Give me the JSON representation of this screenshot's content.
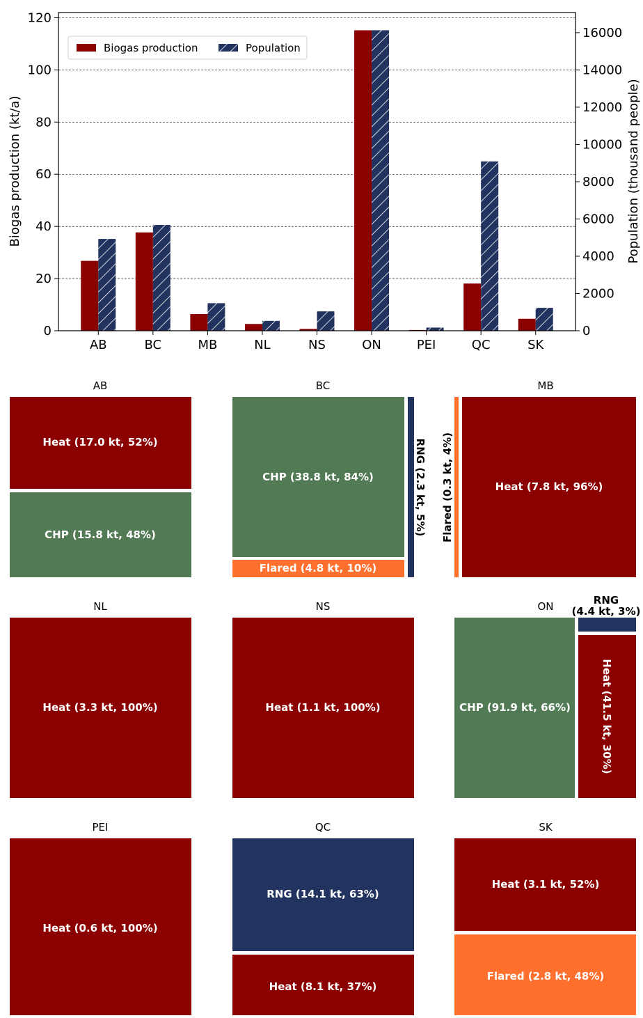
{
  "chart_data": [
    {
      "type": "bar",
      "categories": [
        "AB",
        "BC",
        "MB",
        "NL",
        "NS",
        "ON",
        "PEI",
        "QC",
        "SK"
      ],
      "ylabel": "Biogas production (kt/a)",
      "y2label": "Population (thousand people)",
      "ylim": [
        0,
        122
      ],
      "y2lim": [
        0,
        17080
      ],
      "yticks": [
        0,
        20,
        40,
        60,
        80,
        100,
        120
      ],
      "y2ticks": [
        0,
        2000,
        4000,
        6000,
        8000,
        10000,
        12000,
        14000,
        16000
      ],
      "grid": "horizontal dashed",
      "legend_position": "top-left",
      "series": [
        {
          "name": "Biogas production",
          "axis": "left",
          "color": "#8b0000",
          "hatch": false,
          "values": [
            26.8,
            37.7,
            6.4,
            2.6,
            0.7,
            115.2,
            0.3,
            18.1,
            4.6
          ]
        },
        {
          "name": "Population",
          "axis": "right",
          "color": "#22335f",
          "hatch": true,
          "values": [
            4930,
            5680,
            1480,
            530,
            1040,
            16130,
            170,
            9090,
            1230
          ]
        }
      ]
    },
    {
      "type": "treemap",
      "colors": {
        "Heat": "#8b0000",
        "CHP": "#527a54",
        "RNG": "#22335f",
        "Flared": "#ff6f2e"
      },
      "panels": [
        {
          "title": "AB",
          "tiles": [
            {
              "label": "Heat (17.0 kt, 52%)",
              "use": "Heat",
              "kt": 17.0,
              "pct": 52
            },
            {
              "label": "CHP (15.8 kt, 48%)",
              "use": "CHP",
              "kt": 15.8,
              "pct": 48
            }
          ]
        },
        {
          "title": "BC",
          "tiles": [
            {
              "label": "CHP (38.8 kt, 84%)",
              "use": "CHP",
              "kt": 38.8,
              "pct": 84
            },
            {
              "label": "Flared (4.8 kt, 10%)",
              "use": "Flared",
              "kt": 4.8,
              "pct": 10
            },
            {
              "label": "RNG (2.3 kt, 5%)",
              "use": "RNG",
              "kt": 2.3,
              "pct": 5
            }
          ]
        },
        {
          "title": "MB",
          "tiles": [
            {
              "label": "Flared (0.3 kt, 4%)",
              "use": "Flared",
              "kt": 0.3,
              "pct": 4
            },
            {
              "label": "Heat (7.8 kt, 96%)",
              "use": "Heat",
              "kt": 7.8,
              "pct": 96
            }
          ]
        },
        {
          "title": "NL",
          "tiles": [
            {
              "label": "Heat (3.3 kt, 100%)",
              "use": "Heat",
              "kt": 3.3,
              "pct": 100
            }
          ]
        },
        {
          "title": "NS",
          "tiles": [
            {
              "label": "Heat (1.1 kt, 100%)",
              "use": "Heat",
              "kt": 1.1,
              "pct": 100
            }
          ]
        },
        {
          "title": "ON",
          "tiles": [
            {
              "label": "CHP (91.9 kt, 66%)",
              "use": "CHP",
              "kt": 91.9,
              "pct": 66
            },
            {
              "label": "Heat (41.5 kt, 30%)",
              "use": "Heat",
              "kt": 41.5,
              "pct": 30
            },
            {
              "label_line1": "RNG",
              "label_line2": "(4.4 kt, 3%)",
              "use": "RNG",
              "kt": 4.4,
              "pct": 3
            }
          ]
        },
        {
          "title": "PEI",
          "tiles": [
            {
              "label": "Heat (0.6 kt, 100%)",
              "use": "Heat",
              "kt": 0.6,
              "pct": 100
            }
          ]
        },
        {
          "title": "QC",
          "tiles": [
            {
              "label": "RNG (14.1 kt, 63%)",
              "use": "RNG",
              "kt": 14.1,
              "pct": 63
            },
            {
              "label": "Heat (8.1 kt, 37%)",
              "use": "Heat",
              "kt": 8.1,
              "pct": 37
            }
          ]
        },
        {
          "title": "SK",
          "tiles": [
            {
              "label": "Heat (3.1 kt, 52%)",
              "use": "Heat",
              "kt": 3.1,
              "pct": 52
            },
            {
              "label": "Flared (2.8 kt, 48%)",
              "use": "Flared",
              "kt": 2.8,
              "pct": 48
            }
          ]
        }
      ]
    }
  ]
}
